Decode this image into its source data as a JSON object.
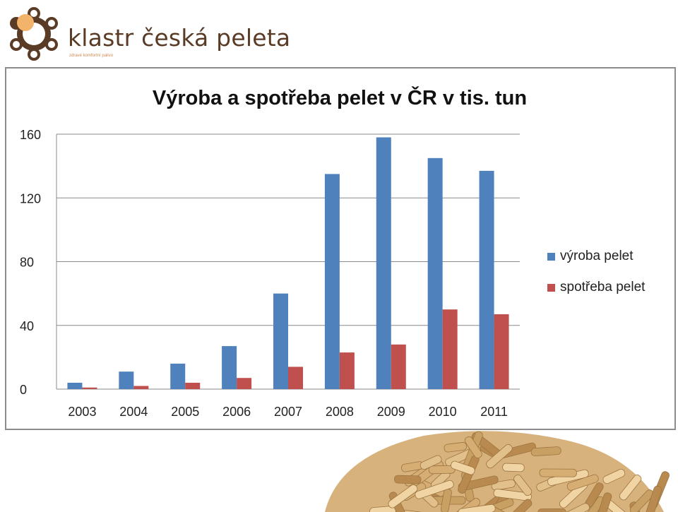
{
  "logo": {
    "name": "klastr česká peleta",
    "tagline": "zdravé komfortní palivo"
  },
  "colors": {
    "accent": "#4f81bd",
    "secondary": "#c0504d",
    "logo_brown": "#5a3b26",
    "logo_orange": "#f2b36b"
  },
  "chart_data": {
    "type": "bar",
    "title": "Výroba a spotřeba pelet v ČR v tis. tun",
    "categories": [
      "2003",
      "2004",
      "2005",
      "2006",
      "2007",
      "2008",
      "2009",
      "2010",
      "2011"
    ],
    "series": [
      {
        "name": "výroba pelet",
        "color": "#4f81bd",
        "values": [
          4,
          11,
          16,
          27,
          60,
          135,
          158,
          145,
          137
        ]
      },
      {
        "name": "spotřeba pelet",
        "color": "#c0504d",
        "values": [
          1,
          2,
          4,
          7,
          14,
          23,
          28,
          50,
          47
        ]
      }
    ],
    "ylim": [
      0,
      160
    ],
    "yticks": [
      0,
      40,
      80,
      120,
      160
    ],
    "grid": true,
    "legend_position": "right"
  },
  "decor": {
    "image": "wood-pellets"
  }
}
